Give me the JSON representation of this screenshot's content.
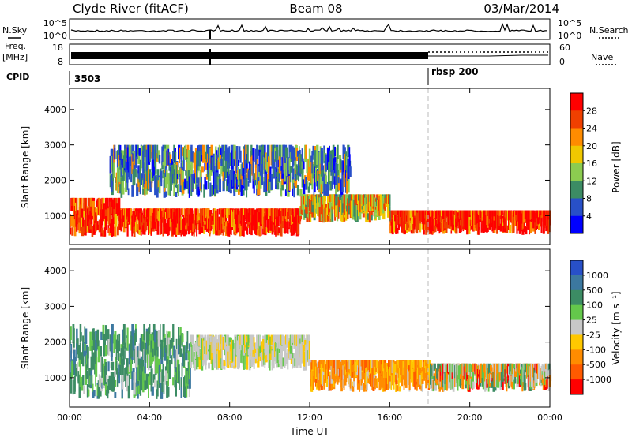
{
  "header": {
    "title": "Clyde River (fitACF)",
    "beam": "Beam 08",
    "date": "03/Mar/2014"
  },
  "top_panels": {
    "nsky_label": "N.Sky",
    "nsky_ticks": [
      "10^5",
      "10^0"
    ],
    "nsearch_label": "N.Search",
    "nsearch_ticks": [
      "10^5",
      "10^0"
    ],
    "freq_label_1": "Freq.",
    "freq_label_2": "[MHz]",
    "freq_ticks": [
      "18",
      "8"
    ],
    "nave_label": "Nave",
    "nave_ticks": [
      "60",
      "0"
    ],
    "cpid_label": "CPID",
    "cpid_values": [
      {
        "label": "3503",
        "start_hour": 0
      },
      {
        "label": "rbsp 200",
        "start_hour": 18
      }
    ]
  },
  "chart_data": [
    {
      "type": "heatmap",
      "name": "power",
      "xlabel": "Time UT",
      "ylabel": "Slant Range [km]",
      "x_ticks": [
        "00:00",
        "04:00",
        "08:00",
        "12:00",
        "16:00",
        "20:00",
        "00:00"
      ],
      "xlim_hours": [
        0,
        24
      ],
      "y_ticks": [
        1000,
        2000,
        3000,
        4000
      ],
      "ylim": [
        180,
        4600
      ],
      "colorbar_label": "Power [dB]",
      "colorbar_ticks": [
        4,
        8,
        12,
        16,
        20,
        24,
        28
      ],
      "colorbar_colors": [
        "#0000ff",
        "#2850c8",
        "#3c8c64",
        "#8ccc50",
        "#f0c800",
        "#ff8c00",
        "#f04000",
        "#ff0000"
      ],
      "features": [
        {
          "hours": [
            0,
            2.5
          ],
          "range_km": [
            400,
            1500
          ],
          "level": "high"
        },
        {
          "hours": [
            2.5,
            11.5
          ],
          "range_km": [
            400,
            1200
          ],
          "level": "high"
        },
        {
          "hours": [
            11.5,
            16
          ],
          "range_km": [
            800,
            1600
          ],
          "level": "medium"
        },
        {
          "hours": [
            16,
            24
          ],
          "range_km": [
            450,
            1150
          ],
          "level": "high"
        },
        {
          "hours": [
            2,
            14
          ],
          "range_km": [
            1500,
            3000
          ],
          "level": "low"
        }
      ]
    },
    {
      "type": "heatmap",
      "name": "velocity",
      "xlabel": "Time UT",
      "ylabel": "Slant Range [km]",
      "x_ticks": [
        "00:00",
        "04:00",
        "08:00",
        "12:00",
        "16:00",
        "20:00",
        "00:00"
      ],
      "xlim_hours": [
        0,
        24
      ],
      "y_ticks": [
        1000,
        2000,
        3000,
        4000
      ],
      "ylim": [
        180,
        4600
      ],
      "colorbar_label": "Velocity [m s⁻¹]",
      "colorbar_ticks": [
        1000,
        500,
        100,
        25,
        -25,
        -100,
        -500,
        -1000
      ],
      "colorbar_colors": [
        "#2850c8",
        "#3c78a0",
        "#3c8c64",
        "#64c84b",
        "#c8c8c8",
        "#ffc800",
        "#ff8c00",
        "#ff5a00",
        "#ff0000"
      ],
      "features": [
        {
          "hours": [
            0,
            6
          ],
          "range_km": [
            400,
            2500
          ],
          "level": "positive"
        },
        {
          "hours": [
            6,
            12
          ],
          "range_km": [
            1200,
            2200
          ],
          "level": "near-zero"
        },
        {
          "hours": [
            12,
            18
          ],
          "range_km": [
            600,
            1500
          ],
          "level": "negative"
        },
        {
          "hours": [
            18,
            24
          ],
          "range_km": [
            600,
            1400
          ],
          "level": "mixed"
        }
      ]
    }
  ]
}
